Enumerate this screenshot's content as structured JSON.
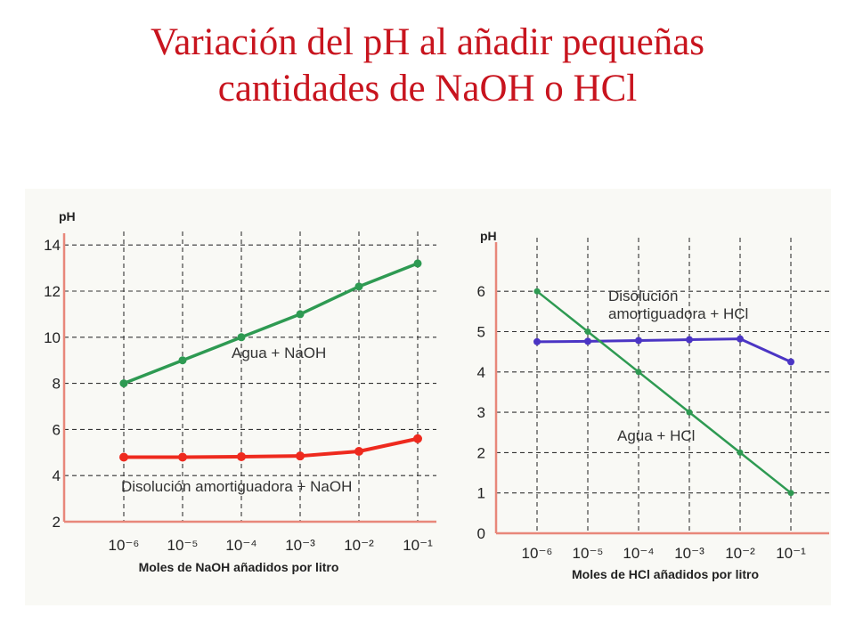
{
  "title": {
    "line1": "Variación del pH al añadir pequeñas",
    "line2": "cantidades de NaOH o HCl"
  },
  "chart_data": [
    {
      "type": "line",
      "ylabel": "pH",
      "xlabel": "Moles de NaOH añadidos por litro",
      "categories": [
        "10⁻⁶",
        "10⁻⁵",
        "10⁻⁴",
        "10⁻³",
        "10⁻²",
        "10⁻¹"
      ],
      "y_ticks": [
        2,
        4,
        6,
        8,
        10,
        12,
        14
      ],
      "ylim": [
        2,
        14
      ],
      "grid": true,
      "series": [
        {
          "name": "Agua + NaOH",
          "values": [
            8,
            9,
            10,
            11,
            12.2,
            13.2
          ],
          "color": "#2e9a52"
        },
        {
          "name": "Disolución amortiguadora + NaOH",
          "values": [
            4.8,
            4.8,
            4.82,
            4.85,
            5.05,
            5.6
          ],
          "color": "#ee2a1e"
        }
      ]
    },
    {
      "type": "line",
      "ylabel": "pH",
      "xlabel": "Moles de HCl añadidos por litro",
      "categories": [
        "10⁻⁶",
        "10⁻⁵",
        "10⁻⁴",
        "10⁻³",
        "10⁻²",
        "10⁻¹"
      ],
      "y_ticks": [
        0,
        1,
        2,
        3,
        4,
        5,
        6
      ],
      "ylim": [
        0,
        7
      ],
      "grid": true,
      "series": [
        {
          "name": "Disolución amortiguadora + HCl",
          "values": [
            4.75,
            4.76,
            4.78,
            4.8,
            4.82,
            4.25
          ],
          "color": "#4b35c4"
        },
        {
          "name": "Agua + HCl",
          "values": [
            6,
            5,
            4,
            3,
            2,
            1
          ],
          "color": "#2e9a52"
        }
      ]
    }
  ]
}
